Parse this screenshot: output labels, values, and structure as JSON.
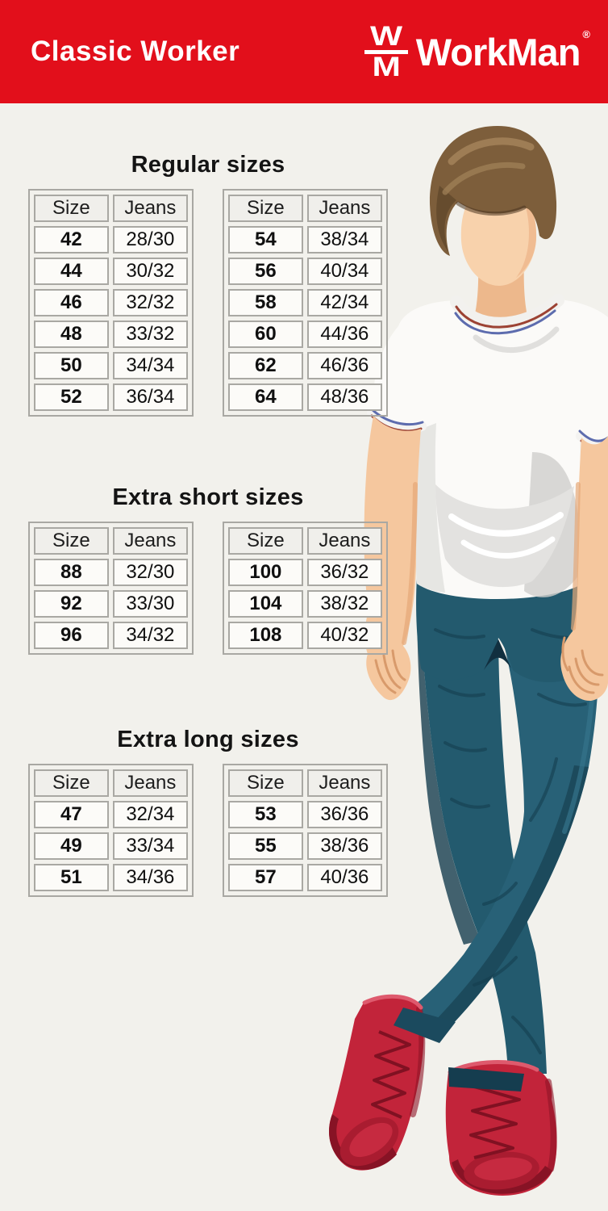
{
  "header": {
    "product_line": "Classic Worker",
    "brand": "WorkMan",
    "registered_mark": "®",
    "monogram": {
      "top": "W",
      "bottom": "M"
    },
    "background_color": "#e20f1b"
  },
  "theme": {
    "page_background": "#f2f1ec",
    "table_border": "#a9a8a3",
    "cell_background": "#fcfbf8",
    "header_cell_background": "#f0efeb",
    "text_color": "#141414"
  },
  "sections": [
    {
      "title": "Regular sizes",
      "tables": [
        {
          "columns": [
            "Size",
            "Jeans"
          ],
          "rows": [
            [
              "42",
              "28/30"
            ],
            [
              "44",
              "30/32"
            ],
            [
              "46",
              "32/32"
            ],
            [
              "48",
              "33/32"
            ],
            [
              "50",
              "34/34"
            ],
            [
              "52",
              "36/34"
            ]
          ]
        },
        {
          "columns": [
            "Size",
            "Jeans"
          ],
          "rows": [
            [
              "54",
              "38/34"
            ],
            [
              "56",
              "40/34"
            ],
            [
              "58",
              "42/34"
            ],
            [
              "60",
              "44/36"
            ],
            [
              "62",
              "46/36"
            ],
            [
              "64",
              "48/36"
            ]
          ]
        }
      ]
    },
    {
      "title": "Extra short sizes",
      "tables": [
        {
          "columns": [
            "Size",
            "Jeans"
          ],
          "rows": [
            [
              "88",
              "32/30"
            ],
            [
              "92",
              "33/30"
            ],
            [
              "96",
              "34/32"
            ]
          ]
        },
        {
          "columns": [
            "Size",
            "Jeans"
          ],
          "rows": [
            [
              "100",
              "36/32"
            ],
            [
              "104",
              "38/32"
            ],
            [
              "108",
              "40/32"
            ]
          ]
        }
      ]
    },
    {
      "title": "Extra long sizes",
      "tables": [
        {
          "columns": [
            "Size",
            "Jeans"
          ],
          "rows": [
            [
              "47",
              "32/34"
            ],
            [
              "49",
              "33/34"
            ],
            [
              "51",
              "34/36"
            ]
          ]
        },
        {
          "columns": [
            "Size",
            "Jeans"
          ],
          "rows": [
            [
              "53",
              "36/36"
            ],
            [
              "55",
              "38/36"
            ],
            [
              "57",
              "40/36"
            ]
          ]
        }
      ]
    }
  ],
  "illustration": {
    "description": "Faceless young man with brown hair wearing a white t-shirt with red-and-blue striped trim, teal jeans and red lace-up boots, legs crossed",
    "colors": {
      "skin": "#f5c79e",
      "hair": "#7d5e3b",
      "shirt": "#fbfaf8",
      "shirt_shadow": "#d9d8d6",
      "trim_red": "#9c4233",
      "trim_blue": "#5d6cae",
      "jeans": "#235a6e",
      "jeans_shadow": "#153d4f",
      "boots": "#c2243a",
      "boots_dark": "#871325"
    }
  }
}
